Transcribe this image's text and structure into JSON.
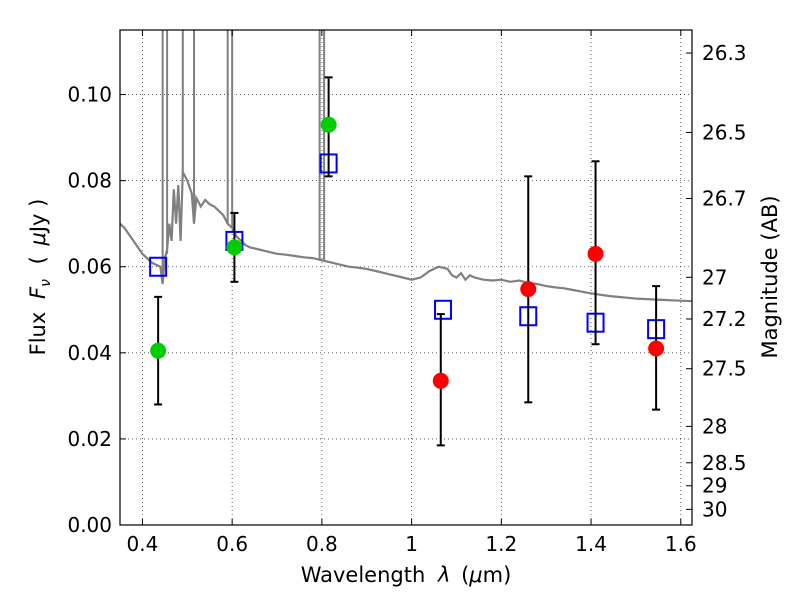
{
  "chart_data": {
    "type": "scatter",
    "xlabel_text": "Wavelength",
    "xlabel_symbol": "λ",
    "xlabel_unit_open": "(",
    "xlabel_unit_mu": "μ",
    "xlabel_unit_rest": "m)",
    "ylabel_text": "Flux",
    "ylabel_symbol": "F",
    "ylabel_sub": "ν",
    "ylabel_unit_open": "(",
    "ylabel_unit_mu": "μ",
    "ylabel_unit_rest": "Jy )",
    "y2label": "Magnitude (AB)",
    "xlim": [
      0.35,
      1.625
    ],
    "ylim": [
      0,
      0.115
    ],
    "grid": true,
    "x_ticks": [
      {
        "v": 0.4,
        "label": "0.4"
      },
      {
        "v": 0.6,
        "label": "0.6"
      },
      {
        "v": 0.8,
        "label": "0.8"
      },
      {
        "v": 1.0,
        "label": "1"
      },
      {
        "v": 1.2,
        "label": "1.2"
      },
      {
        "v": 1.4,
        "label": "1.4"
      },
      {
        "v": 1.6,
        "label": "1.6"
      }
    ],
    "y_ticks": [
      {
        "v": 0.0,
        "label": "0.00"
      },
      {
        "v": 0.02,
        "label": "0.02"
      },
      {
        "v": 0.04,
        "label": "0.04"
      },
      {
        "v": 0.06,
        "label": "0.06"
      },
      {
        "v": 0.08,
        "label": "0.08"
      },
      {
        "v": 0.1,
        "label": "0.10"
      }
    ],
    "y2_ticks": [
      {
        "label": "26.3",
        "mag": 26.3
      },
      {
        "label": "26.5",
        "mag": 26.5
      },
      {
        "label": "26.7",
        "mag": 26.7
      },
      {
        "label": "27",
        "mag": 27.0
      },
      {
        "label": "27.2",
        "mag": 27.2
      },
      {
        "label": "27.5",
        "mag": 27.5
      },
      {
        "label": "28",
        "mag": 28.0
      },
      {
        "label": "28.5",
        "mag": 28.5
      },
      {
        "label": "29",
        "mag": 29.0
      },
      {
        "label": "30",
        "mag": 30.0
      }
    ],
    "series": [
      {
        "kind": "model_spectrum",
        "color": "#808080",
        "points": [
          [
            0.35,
            0.07
          ],
          [
            0.36,
            0.069
          ],
          [
            0.37,
            0.0675
          ],
          [
            0.38,
            0.066
          ],
          [
            0.39,
            0.0645
          ],
          [
            0.4,
            0.063
          ],
          [
            0.41,
            0.062
          ],
          [
            0.42,
            0.061
          ],
          [
            0.43,
            0.0605
          ],
          [
            0.44,
            0.06
          ],
          [
            0.445,
            0.056
          ],
          [
            0.45,
            0.062
          ],
          [
            0.455,
            0.064
          ],
          [
            0.46,
            0.07
          ],
          [
            0.465,
            0.066
          ],
          [
            0.47,
            0.078
          ],
          [
            0.475,
            0.07
          ],
          [
            0.48,
            0.079
          ],
          [
            0.485,
            0.066
          ],
          [
            0.49,
            0.082
          ],
          [
            0.5,
            0.08
          ],
          [
            0.51,
            0.077
          ],
          [
            0.515,
            0.07
          ],
          [
            0.52,
            0.076
          ],
          [
            0.53,
            0.074
          ],
          [
            0.54,
            0.0755
          ],
          [
            0.55,
            0.0745
          ],
          [
            0.56,
            0.074
          ],
          [
            0.57,
            0.073
          ],
          [
            0.58,
            0.072
          ],
          [
            0.59,
            0.07
          ],
          [
            0.6,
            0.069
          ],
          [
            0.61,
            0.067
          ],
          [
            0.62,
            0.066
          ],
          [
            0.63,
            0.065
          ],
          [
            0.64,
            0.0645
          ],
          [
            0.66,
            0.064
          ],
          [
            0.68,
            0.0635
          ],
          [
            0.7,
            0.063
          ],
          [
            0.72,
            0.0628
          ],
          [
            0.74,
            0.0625
          ],
          [
            0.76,
            0.0622
          ],
          [
            0.78,
            0.062
          ],
          [
            0.8,
            0.0615
          ],
          [
            0.82,
            0.061
          ],
          [
            0.84,
            0.0605
          ],
          [
            0.86,
            0.06
          ],
          [
            0.88,
            0.0598
          ],
          [
            0.9,
            0.0595
          ],
          [
            0.92,
            0.059
          ],
          [
            0.94,
            0.0585
          ],
          [
            0.96,
            0.058
          ],
          [
            0.98,
            0.0575
          ],
          [
            1.0,
            0.057
          ],
          [
            1.02,
            0.0575
          ],
          [
            1.04,
            0.059
          ],
          [
            1.06,
            0.06
          ],
          [
            1.08,
            0.0595
          ],
          [
            1.09,
            0.058
          ],
          [
            1.1,
            0.0575
          ],
          [
            1.11,
            0.0585
          ],
          [
            1.12,
            0.057
          ],
          [
            1.13,
            0.058
          ],
          [
            1.14,
            0.0575
          ],
          [
            1.16,
            0.057
          ],
          [
            1.18,
            0.0568
          ],
          [
            1.2,
            0.057
          ],
          [
            1.22,
            0.0565
          ],
          [
            1.24,
            0.0568
          ],
          [
            1.26,
            0.0562
          ],
          [
            1.28,
            0.056
          ],
          [
            1.3,
            0.0555
          ],
          [
            1.32,
            0.0552
          ],
          [
            1.34,
            0.055
          ],
          [
            1.36,
            0.0546
          ],
          [
            1.38,
            0.0542
          ],
          [
            1.4,
            0.0538
          ],
          [
            1.42,
            0.0535
          ],
          [
            1.44,
            0.0532
          ],
          [
            1.46,
            0.053
          ],
          [
            1.48,
            0.0528
          ],
          [
            1.5,
            0.0526
          ],
          [
            1.52,
            0.0525
          ],
          [
            1.54,
            0.0524
          ],
          [
            1.56,
            0.0523
          ],
          [
            1.58,
            0.0522
          ],
          [
            1.6,
            0.0521
          ],
          [
            1.625,
            0.052
          ]
        ],
        "lines": [
          [
            0.445,
            0.058
          ],
          [
            0.455,
            0.063
          ],
          [
            0.49,
            0.082
          ],
          [
            0.515,
            0.07
          ],
          [
            0.59,
            0.07
          ],
          [
            0.6,
            0.069
          ],
          [
            0.795,
            0.0615
          ],
          [
            0.805,
            0.0615
          ]
        ]
      },
      {
        "kind": "model_photometry",
        "marker": "square",
        "color": "#0000ff",
        "points": [
          [
            0.435,
            0.06
          ],
          [
            0.605,
            0.066
          ],
          [
            0.815,
            0.084
          ],
          [
            1.07,
            0.05
          ],
          [
            1.26,
            0.0485
          ],
          [
            1.41,
            0.047
          ],
          [
            1.545,
            0.0455
          ]
        ]
      },
      {
        "kind": "observed_optical",
        "marker": "circle",
        "color": "#00cc00",
        "points": [
          [
            0.435,
            0.0405
          ],
          [
            0.605,
            0.0645
          ],
          [
            0.815,
            0.093
          ]
        ],
        "errors": [
          [
            0.028,
            0.053
          ],
          [
            0.0565,
            0.0725
          ],
          [
            0.081,
            0.104
          ]
        ]
      },
      {
        "kind": "observed_nir",
        "marker": "circle",
        "color": "#ff0000",
        "points": [
          [
            1.065,
            0.0335
          ],
          [
            1.26,
            0.0548
          ],
          [
            1.41,
            0.063
          ],
          [
            1.545,
            0.041
          ]
        ],
        "errors": [
          [
            0.0185,
            0.049
          ],
          [
            0.0285,
            0.081
          ],
          [
            0.042,
            0.0845
          ],
          [
            0.0268,
            0.0555
          ]
        ]
      }
    ]
  }
}
